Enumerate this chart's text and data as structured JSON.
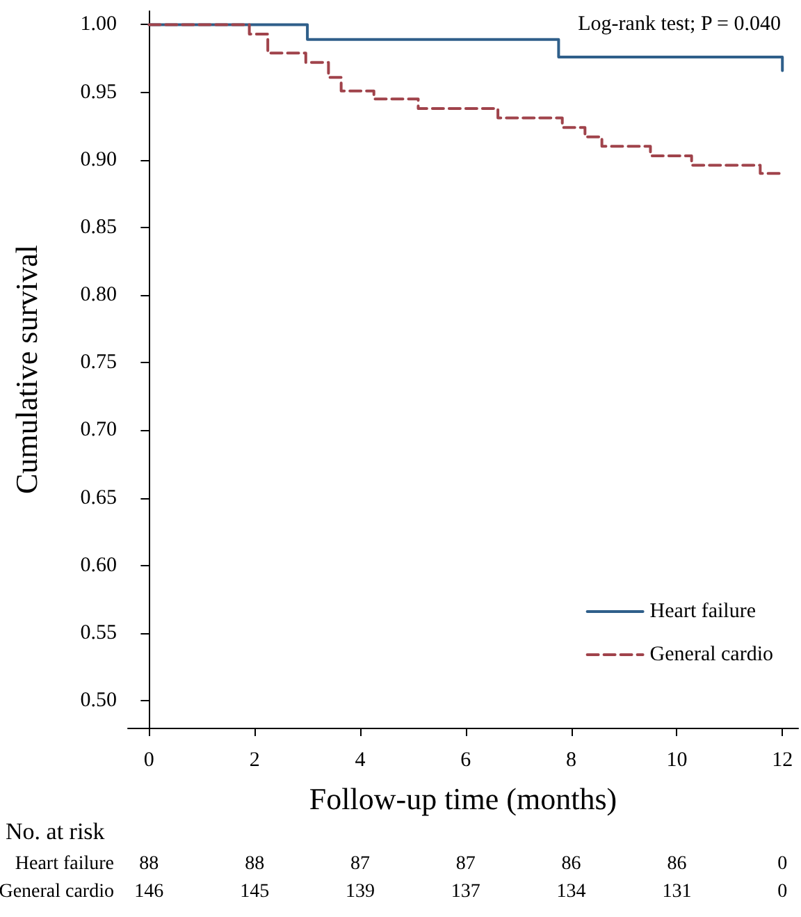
{
  "chart_data": {
    "type": "step",
    "xlabel": "Follow-up time (months)",
    "ylabel": "Cumulative survival",
    "series": [
      {
        "name": "Heart failure",
        "color": "#2f5f8a",
        "line_style": "solid",
        "x": [
          0,
          3.0,
          7.76,
          12,
          12
        ],
        "values": [
          1.0,
          0.989,
          0.976,
          0.976,
          0.966
        ]
      },
      {
        "name": "General cardio",
        "color": "#a0434b",
        "line_style": "dashed",
        "x": [
          0,
          1.9,
          2.25,
          2.97,
          3.4,
          3.64,
          4.26,
          5.1,
          6.61,
          7.83,
          8.26,
          8.58,
          9.5,
          10.28,
          11.58,
          12
        ],
        "values": [
          1.0,
          0.993,
          0.979,
          0.972,
          0.961,
          0.951,
          0.945,
          0.938,
          0.931,
          0.924,
          0.917,
          0.91,
          0.903,
          0.896,
          0.89,
          0.89
        ]
      }
    ],
    "xlim": [
      -0.4,
      12.3
    ],
    "xticks": [
      0,
      2,
      4,
      6,
      8,
      10,
      12
    ],
    "ylim": [
      0.48,
      1.01
    ],
    "yticks": [
      {
        "value": 0.5,
        "label": "0.50"
      },
      {
        "value": 0.55,
        "label": "0.55"
      },
      {
        "value": 0.6,
        "label": "0.60"
      },
      {
        "value": 0.65,
        "label": "0.65"
      },
      {
        "value": 0.7,
        "label": "0.70"
      },
      {
        "value": 0.75,
        "label": "0.75"
      },
      {
        "value": 0.8,
        "label": "0.80"
      },
      {
        "value": 0.85,
        "label": "0.85"
      },
      {
        "value": 0.9,
        "label": "0.90"
      },
      {
        "value": 0.95,
        "label": "0.95"
      },
      {
        "value": 1.0,
        "label": "1.00"
      }
    ],
    "grid": false,
    "legend": "bottom right",
    "marker": "none",
    "annotations": [
      "Log-rank test; P = 0.040",
      "No. at risk",
      "Heart failure",
      "88",
      "88",
      "87",
      "87",
      "86",
      "86",
      "0",
      "General cardio",
      "146",
      "145",
      "139",
      "137",
      "134",
      "131",
      "0"
    ]
  }
}
